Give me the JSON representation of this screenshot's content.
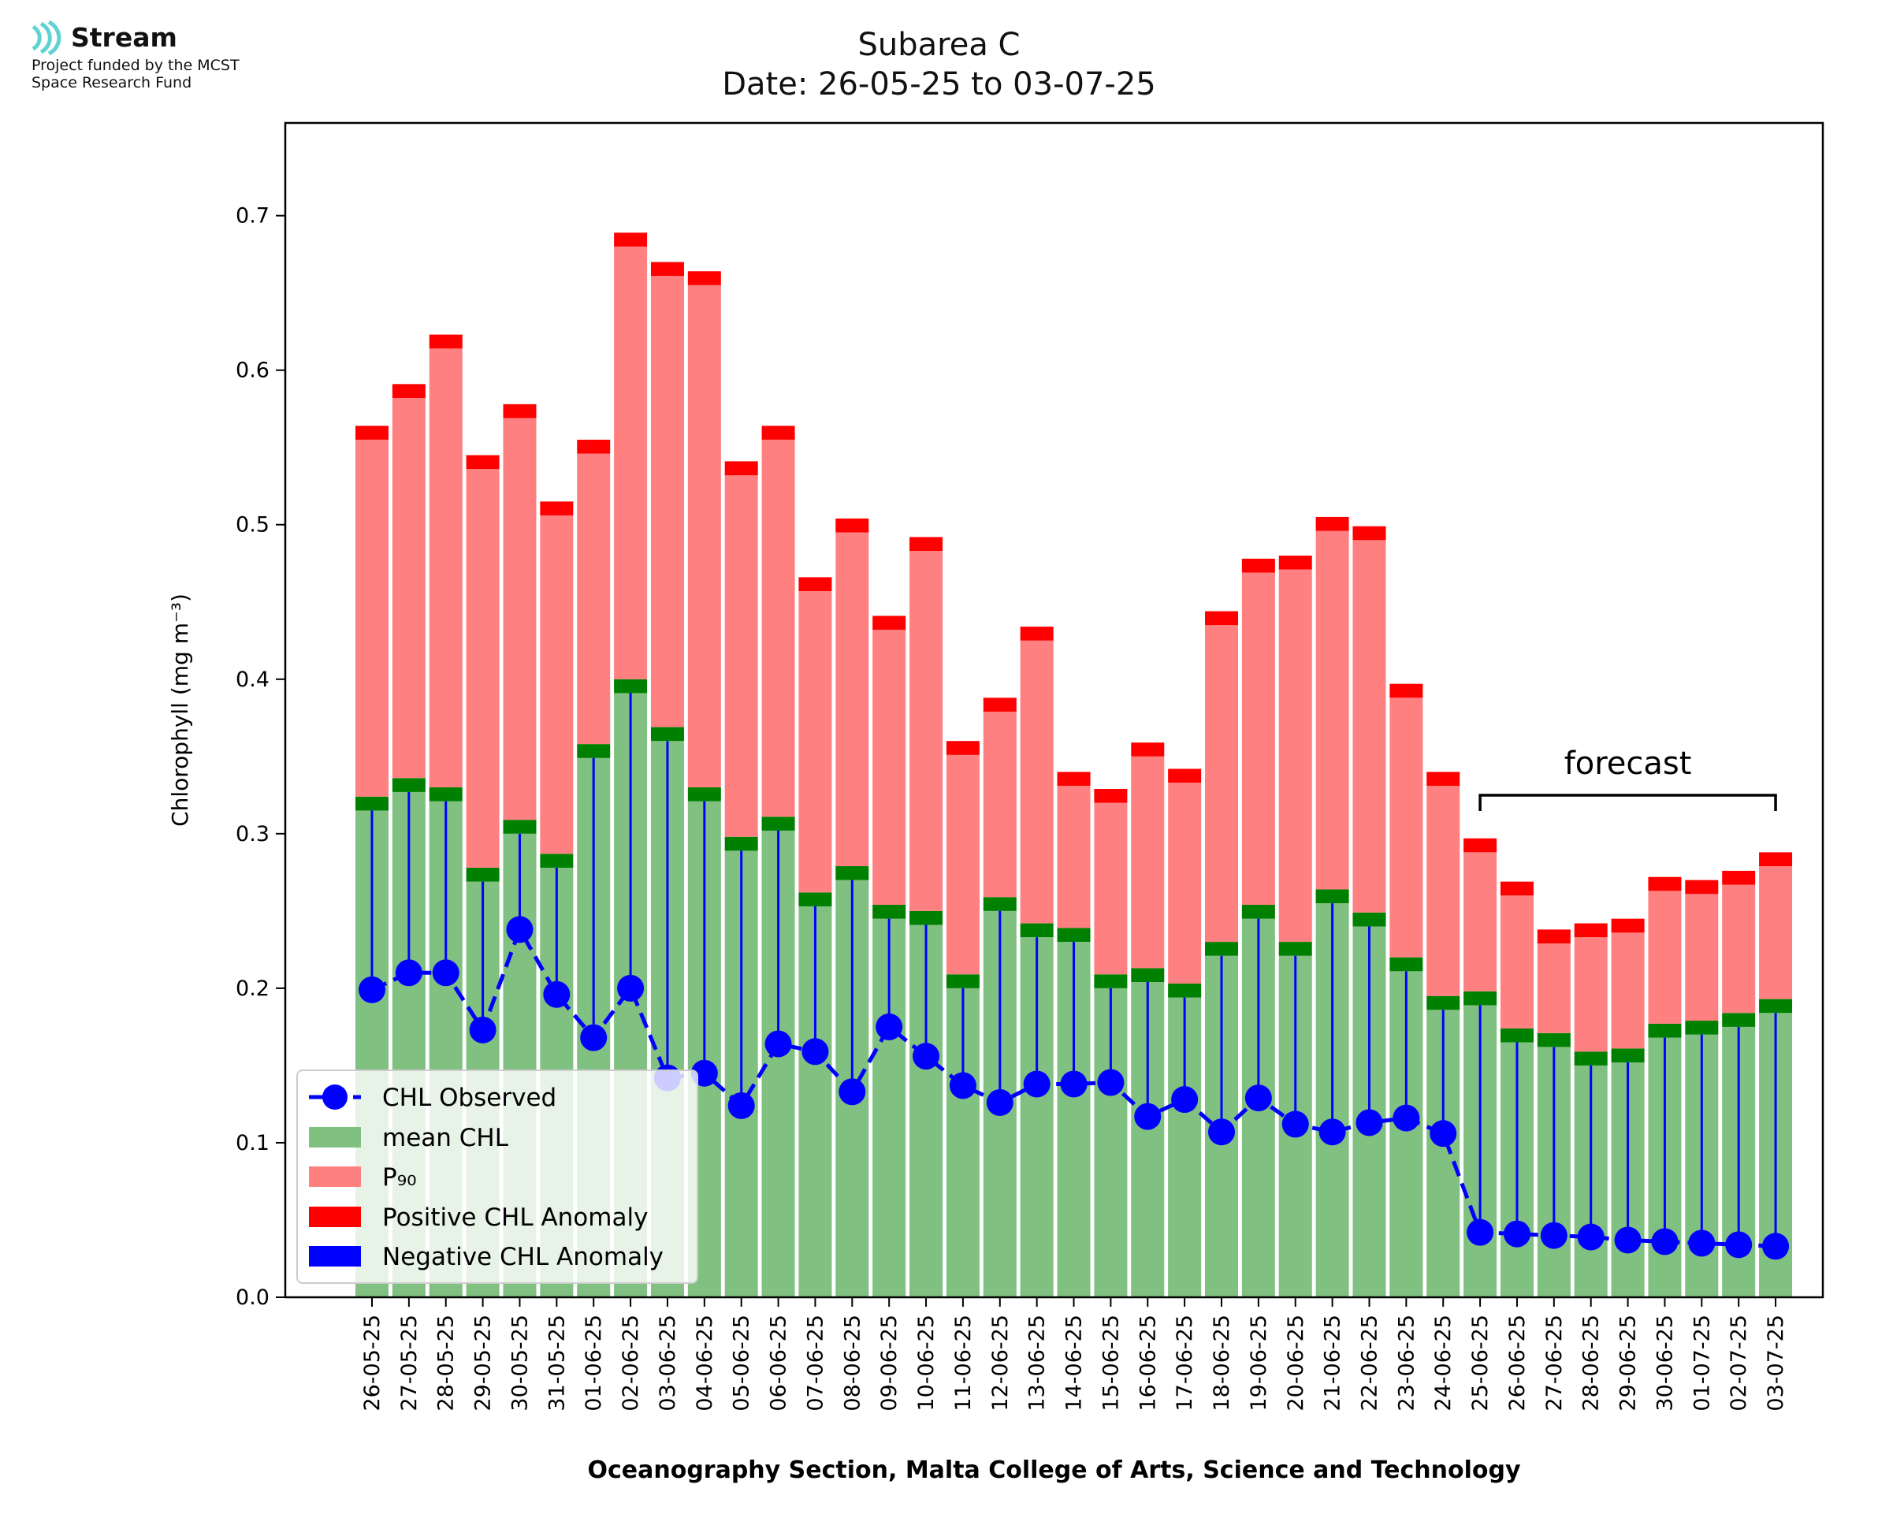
{
  "logo": {
    "name": "Stream",
    "line1": "Project funded by the MCST",
    "line2": "Space Research Fund"
  },
  "colors": {
    "mean": "#80c080",
    "p90": "#ff8080",
    "pos_anomaly": "#ff0000",
    "neg_anomaly": "#0000ff",
    "green_band": "#008000",
    "observed": "#0000ff"
  },
  "chart_data": {
    "type": "bar",
    "title": "Subarea C",
    "subtitle": "Date: 26-05-25 to 03-07-25",
    "xlabel": "Oceanography Section, Malta College of Arts, Science and Technology",
    "ylabel": "Chlorophyll (mg m⁻³)",
    "ylim": [
      0,
      0.76
    ],
    "yticks": [
      "0.0",
      "0.1",
      "0.2",
      "0.3",
      "0.4",
      "0.5",
      "0.6",
      "0.7"
    ],
    "categories": [
      "26-05-25",
      "27-05-25",
      "28-05-25",
      "29-05-25",
      "30-05-25",
      "31-05-25",
      "01-06-25",
      "02-06-25",
      "03-06-25",
      "04-06-25",
      "05-06-25",
      "06-06-25",
      "07-06-25",
      "08-06-25",
      "09-06-25",
      "10-06-25",
      "11-06-25",
      "12-06-25",
      "13-06-25",
      "14-06-25",
      "15-06-25",
      "16-06-25",
      "17-06-25",
      "18-06-25",
      "19-06-25",
      "20-06-25",
      "21-06-25",
      "22-06-25",
      "23-06-25",
      "24-06-25",
      "25-06-25",
      "26-06-25",
      "27-06-25",
      "28-06-25",
      "29-06-25",
      "30-06-25",
      "01-07-25",
      "02-07-25",
      "03-07-25"
    ],
    "series": [
      {
        "name": "mean CHL",
        "values": [
          0.315,
          0.327,
          0.321,
          0.269,
          0.3,
          0.278,
          0.349,
          0.391,
          0.36,
          0.321,
          0.289,
          0.302,
          0.253,
          0.27,
          0.245,
          0.241,
          0.2,
          0.25,
          0.233,
          0.23,
          0.2,
          0.204,
          0.194,
          0.221,
          0.245,
          0.221,
          0.255,
          0.24,
          0.211,
          0.186,
          0.189,
          0.165,
          0.162,
          0.15,
          0.152,
          0.168,
          0.17,
          0.175,
          0.184
        ]
      },
      {
        "name": "P₉₀",
        "values": [
          0.555,
          0.582,
          0.614,
          0.536,
          0.569,
          0.506,
          0.546,
          0.68,
          0.661,
          0.655,
          0.532,
          0.555,
          0.457,
          0.495,
          0.432,
          0.483,
          0.351,
          0.379,
          0.425,
          0.331,
          0.32,
          0.35,
          0.333,
          0.435,
          0.469,
          0.471,
          0.496,
          0.49,
          0.388,
          0.331,
          0.288,
          0.26,
          0.229,
          0.233,
          0.236,
          0.263,
          0.261,
          0.267,
          0.279
        ]
      },
      {
        "name": "CHL Observed",
        "values": [
          0.199,
          0.21,
          0.21,
          0.173,
          0.238,
          0.196,
          0.168,
          0.2,
          0.142,
          0.145,
          0.124,
          0.164,
          0.159,
          0.133,
          0.175,
          0.156,
          0.137,
          0.126,
          0.138,
          0.138,
          0.139,
          0.117,
          0.128,
          0.107,
          0.129,
          0.112,
          0.107,
          0.113,
          0.116,
          0.106,
          0.042,
          0.041,
          0.04,
          0.039,
          0.037,
          0.036,
          0.035,
          0.034,
          0.033
        ]
      }
    ],
    "legend": {
      "position": "lower-left",
      "entries": [
        "CHL Observed",
        "mean CHL",
        "P₉₀",
        "Positive CHL Anomaly",
        "Negative CHL Anomaly"
      ]
    },
    "annotation": {
      "text": "forecast",
      "from": "25-06-25",
      "to": "03-07-25"
    }
  }
}
